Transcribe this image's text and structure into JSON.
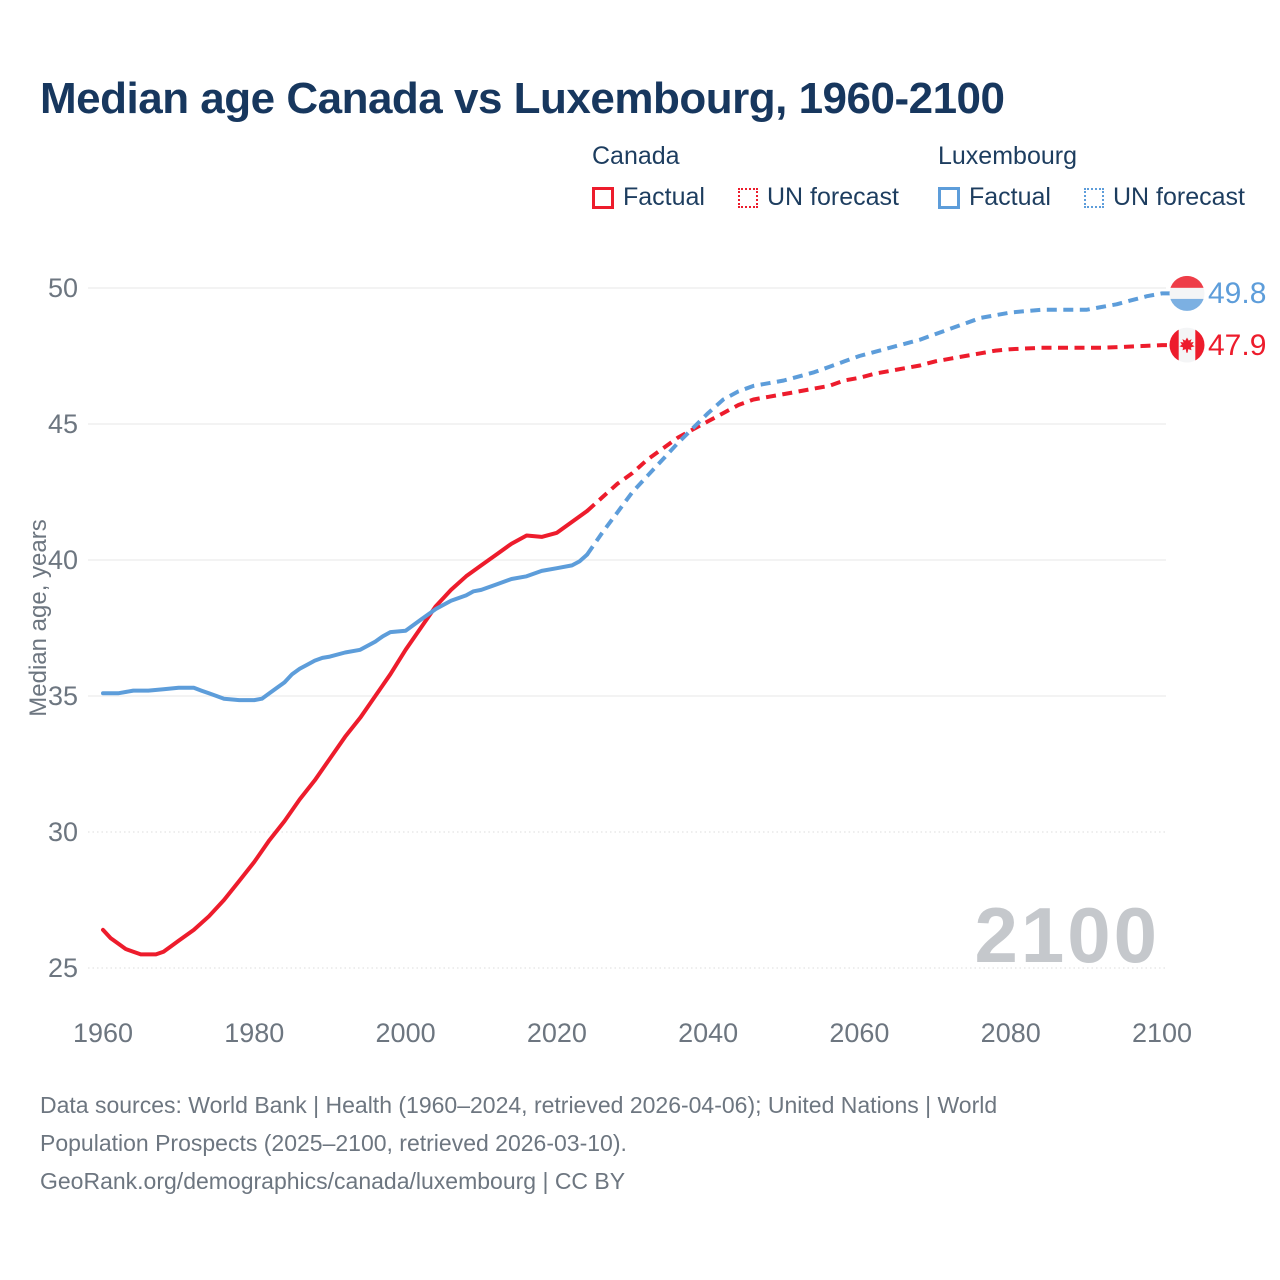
{
  "title": "Median age Canada vs Luxembourg, 1960-2100",
  "legend": {
    "canada": {
      "label": "Canada",
      "factual": "Factual",
      "forecast": "UN forecast"
    },
    "luxembourg": {
      "label": "Luxembourg",
      "factual": "Factual",
      "forecast": "UN forecast"
    }
  },
  "end_labels": {
    "luxembourg": "49.8",
    "canada": "47.9"
  },
  "watermark": "2100",
  "footer": {
    "line1": "Data sources: World Bank | Health (1960–2024, retrieved 2026-04-06); United Nations | World",
    "line2": "Population Prospects (2025–2100, retrieved 2026-03-10).",
    "line3": "GeoRank.org/demographics/canada/luxembourg | CC BY"
  },
  "colors": {
    "canada": "#ed1c2c",
    "luxembourg": "#5d9dda",
    "title": "#17375e",
    "axis_text": "#6d7680",
    "grid": "#ececec",
    "watermark": "#c5c8cc",
    "lux_flag_blue": "#7cb0e2",
    "flag_white": "#f4f5f6"
  },
  "chart_data": {
    "type": "line",
    "title": "Median age Canada vs Luxembourg, 1960-2100",
    "xlabel": "",
    "ylabel": "Median age, years",
    "xlim": [
      1960,
      2100
    ],
    "ylim": [
      25,
      50
    ],
    "x_ticks": [
      1960,
      1980,
      2000,
      2020,
      2040,
      2060,
      2080,
      2100
    ],
    "y_ticks": [
      50,
      45,
      40,
      35,
      30,
      25
    ],
    "grid": true,
    "legend_position": "top",
    "series": [
      {
        "name": "Canada Factual",
        "color_key": "canada",
        "style": "solid",
        "leader": false,
        "points": [
          [
            1960,
            26.4
          ],
          [
            1961,
            26.1
          ],
          [
            1962,
            25.9
          ],
          [
            1963,
            25.7
          ],
          [
            1964,
            25.6
          ],
          [
            1965,
            25.5
          ],
          [
            1966,
            25.5
          ],
          [
            1967,
            25.5
          ],
          [
            1968,
            25.6
          ],
          [
            1969,
            25.8
          ],
          [
            1970,
            26.0
          ],
          [
            1972,
            26.4
          ],
          [
            1974,
            26.9
          ],
          [
            1976,
            27.5
          ],
          [
            1978,
            28.2
          ],
          [
            1980,
            28.9
          ],
          [
            1982,
            29.7
          ],
          [
            1984,
            30.4
          ],
          [
            1986,
            31.2
          ],
          [
            1988,
            31.9
          ],
          [
            1990,
            32.7
          ],
          [
            1992,
            33.5
          ],
          [
            1994,
            34.2
          ],
          [
            1996,
            35.0
          ],
          [
            1998,
            35.8
          ],
          [
            2000,
            36.7
          ],
          [
            2002,
            37.5
          ],
          [
            2004,
            38.3
          ],
          [
            2006,
            38.9
          ],
          [
            2008,
            39.4
          ],
          [
            2010,
            39.8
          ],
          [
            2012,
            40.2
          ],
          [
            2014,
            40.6
          ],
          [
            2016,
            40.9
          ],
          [
            2018,
            40.85
          ],
          [
            2020,
            41.0
          ],
          [
            2022,
            41.4
          ],
          [
            2024,
            41.8
          ]
        ]
      },
      {
        "name": "Canada UN forecast",
        "color_key": "canada",
        "style": "dashed",
        "leader": true,
        "points": [
          [
            2024,
            41.8
          ],
          [
            2026,
            42.3
          ],
          [
            2028,
            42.8
          ],
          [
            2030,
            43.2
          ],
          [
            2032,
            43.7
          ],
          [
            2034,
            44.1
          ],
          [
            2036,
            44.5
          ],
          [
            2038,
            44.8
          ],
          [
            2040,
            45.1
          ],
          [
            2042,
            45.4
          ],
          [
            2044,
            45.7
          ],
          [
            2046,
            45.9
          ],
          [
            2048,
            46.0
          ],
          [
            2050,
            46.1
          ],
          [
            2052,
            46.2
          ],
          [
            2054,
            46.3
          ],
          [
            2056,
            46.4
          ],
          [
            2058,
            46.6
          ],
          [
            2060,
            46.7
          ],
          [
            2062,
            46.85
          ],
          [
            2064,
            46.95
          ],
          [
            2066,
            47.05
          ],
          [
            2068,
            47.15
          ],
          [
            2070,
            47.3
          ],
          [
            2072,
            47.4
          ],
          [
            2074,
            47.5
          ],
          [
            2076,
            47.6
          ],
          [
            2078,
            47.7
          ],
          [
            2080,
            47.75
          ],
          [
            2084,
            47.8
          ],
          [
            2088,
            47.8
          ],
          [
            2092,
            47.8
          ],
          [
            2096,
            47.85
          ],
          [
            2100,
            47.9
          ]
        ]
      },
      {
        "name": "Luxembourg Factual",
        "color_key": "luxembourg",
        "style": "solid",
        "leader": false,
        "points": [
          [
            1960,
            35.1
          ],
          [
            1962,
            35.1
          ],
          [
            1964,
            35.2
          ],
          [
            1966,
            35.2
          ],
          [
            1968,
            35.25
          ],
          [
            1970,
            35.3
          ],
          [
            1972,
            35.3
          ],
          [
            1973,
            35.2
          ],
          [
            1974,
            35.1
          ],
          [
            1975,
            35.0
          ],
          [
            1976,
            34.9
          ],
          [
            1978,
            34.85
          ],
          [
            1980,
            34.85
          ],
          [
            1981,
            34.9
          ],
          [
            1982,
            35.1
          ],
          [
            1983,
            35.3
          ],
          [
            1984,
            35.5
          ],
          [
            1985,
            35.8
          ],
          [
            1986,
            36.0
          ],
          [
            1987,
            36.15
          ],
          [
            1988,
            36.3
          ],
          [
            1989,
            36.4
          ],
          [
            1990,
            36.45
          ],
          [
            1992,
            36.6
          ],
          [
            1994,
            36.7
          ],
          [
            1996,
            37.0
          ],
          [
            1997,
            37.2
          ],
          [
            1998,
            37.35
          ],
          [
            2000,
            37.4
          ],
          [
            2002,
            37.8
          ],
          [
            2004,
            38.2
          ],
          [
            2006,
            38.5
          ],
          [
            2008,
            38.7
          ],
          [
            2009,
            38.85
          ],
          [
            2010,
            38.9
          ],
          [
            2012,
            39.1
          ],
          [
            2014,
            39.3
          ],
          [
            2016,
            39.4
          ],
          [
            2018,
            39.6
          ],
          [
            2020,
            39.7
          ],
          [
            2022,
            39.8
          ],
          [
            2023,
            39.95
          ],
          [
            2024,
            40.2
          ]
        ]
      },
      {
        "name": "Luxembourg UN forecast",
        "color_key": "luxembourg",
        "style": "dashed",
        "leader": true,
        "points": [
          [
            2024,
            40.2
          ],
          [
            2026,
            41.0
          ],
          [
            2028,
            41.75
          ],
          [
            2030,
            42.5
          ],
          [
            2032,
            43.1
          ],
          [
            2034,
            43.7
          ],
          [
            2036,
            44.3
          ],
          [
            2038,
            44.85
          ],
          [
            2040,
            45.4
          ],
          [
            2042,
            45.9
          ],
          [
            2044,
            46.2
          ],
          [
            2046,
            46.4
          ],
          [
            2048,
            46.5
          ],
          [
            2050,
            46.6
          ],
          [
            2052,
            46.75
          ],
          [
            2054,
            46.9
          ],
          [
            2056,
            47.1
          ],
          [
            2058,
            47.3
          ],
          [
            2060,
            47.5
          ],
          [
            2062,
            47.65
          ],
          [
            2064,
            47.8
          ],
          [
            2066,
            47.95
          ],
          [
            2068,
            48.1
          ],
          [
            2070,
            48.3
          ],
          [
            2072,
            48.5
          ],
          [
            2074,
            48.7
          ],
          [
            2076,
            48.9
          ],
          [
            2078,
            49.0
          ],
          [
            2080,
            49.1
          ],
          [
            2082,
            49.15
          ],
          [
            2084,
            49.2
          ],
          [
            2086,
            49.2
          ],
          [
            2088,
            49.2
          ],
          [
            2090,
            49.2
          ],
          [
            2092,
            49.3
          ],
          [
            2094,
            49.4
          ],
          [
            2096,
            49.55
          ],
          [
            2098,
            49.7
          ],
          [
            2100,
            49.8
          ]
        ]
      }
    ]
  }
}
